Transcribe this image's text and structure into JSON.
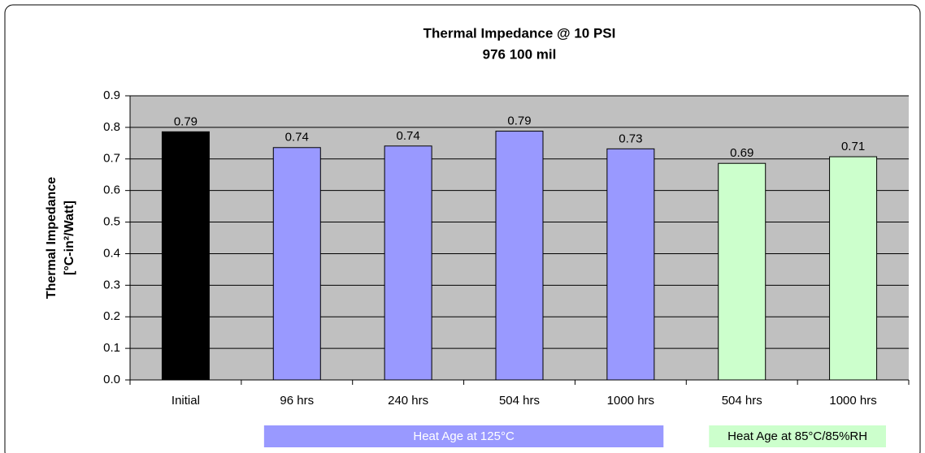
{
  "chart_data": {
    "type": "bar",
    "title": "Thermal Impedance @ 10 PSI",
    "subtitle": "976 100 mil",
    "y_label": [
      "Thermal Impedance",
      "[°C-in²/Watt]"
    ],
    "categories": [
      "Initial",
      "96 hrs",
      "240 hrs",
      "504 hrs",
      "1000 hrs",
      "504 hrs",
      "1000 hrs"
    ],
    "values": [
      0.786,
      0.736,
      0.741,
      0.788,
      0.732,
      0.686,
      0.707
    ],
    "value_labels": [
      "0.79",
      "0.74",
      "0.74",
      "0.79",
      "0.73",
      "0.69",
      "0.71"
    ],
    "colors": [
      "#000000",
      "#9999ff",
      "#9999ff",
      "#9999ff",
      "#9999ff",
      "#ccffcc",
      "#ccffcc"
    ],
    "ylim": [
      0,
      0.9
    ],
    "yticks": [
      {
        "value": 0,
        "label": "0.0"
      },
      0.1,
      0.2,
      0.3,
      0.4,
      0.5,
      0.6,
      0.7,
      0.8,
      0.9
    ],
    "grid": true,
    "annotations": [
      {
        "text": "Heat Age at 125°C",
        "from": 1,
        "to": 4,
        "color": "#9999ff",
        "text_color": "#ffffff"
      },
      {
        "text": "Heat Age at 85°C/85%RH",
        "from": 5,
        "to": 6,
        "color": "#ccffcc",
        "text_color": "#000000"
      }
    ]
  }
}
